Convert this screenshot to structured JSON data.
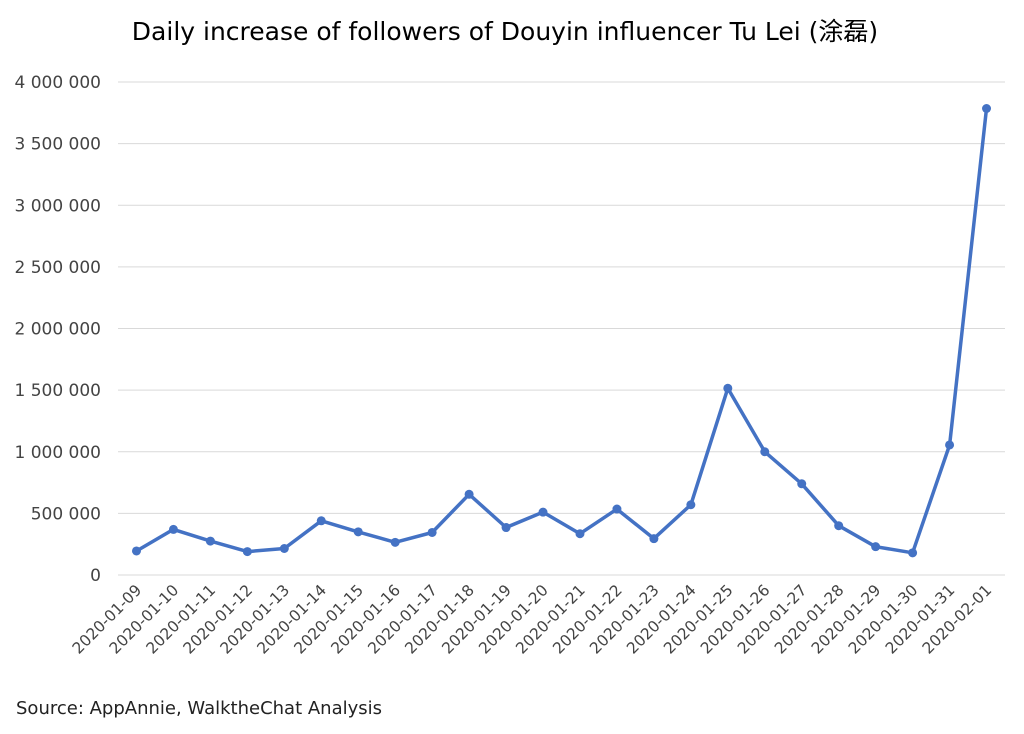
{
  "source": "Source: AppAnnie, WalktheChat Analysis",
  "chart_data": {
    "type": "line",
    "title": "Daily increase of followers of Douyin influencer Tu Lei (涂磊)",
    "xlabel": "",
    "ylabel": "",
    "ylim": [
      0,
      4000000
    ],
    "y_ticks": [
      0,
      500000,
      1000000,
      1500000,
      2000000,
      2500000,
      3000000,
      3500000,
      4000000
    ],
    "y_tick_labels": [
      "0",
      "500 000",
      "1 000 000",
      "1 500 000",
      "2 000 000",
      "2 500 000",
      "3 000 000",
      "3 500 000",
      "4 000 000"
    ],
    "grid": "horizontal",
    "legend": "none",
    "line_color": "#4472c4",
    "grid_color": "#d9d9d9",
    "categories": [
      "2020-01-09",
      "2020-01-10",
      "2020-01-11",
      "2020-01-12",
      "2020-01-13",
      "2020-01-14",
      "2020-01-15",
      "2020-01-16",
      "2020-01-17",
      "2020-01-18",
      "2020-01-19",
      "2020-01-20",
      "2020-01-21",
      "2020-01-22",
      "2020-01-23",
      "2020-01-24",
      "2020-01-25",
      "2020-01-26",
      "2020-01-27",
      "2020-01-28",
      "2020-01-29",
      "2020-01-30",
      "2020-01-31",
      "2020-02-01"
    ],
    "values": [
      195000,
      370000,
      275000,
      190000,
      215000,
      440000,
      350000,
      265000,
      345000,
      655000,
      385000,
      510000,
      335000,
      535000,
      295000,
      570000,
      1515000,
      1000000,
      740000,
      400000,
      230000,
      180000,
      1055000,
      3785000
    ]
  }
}
